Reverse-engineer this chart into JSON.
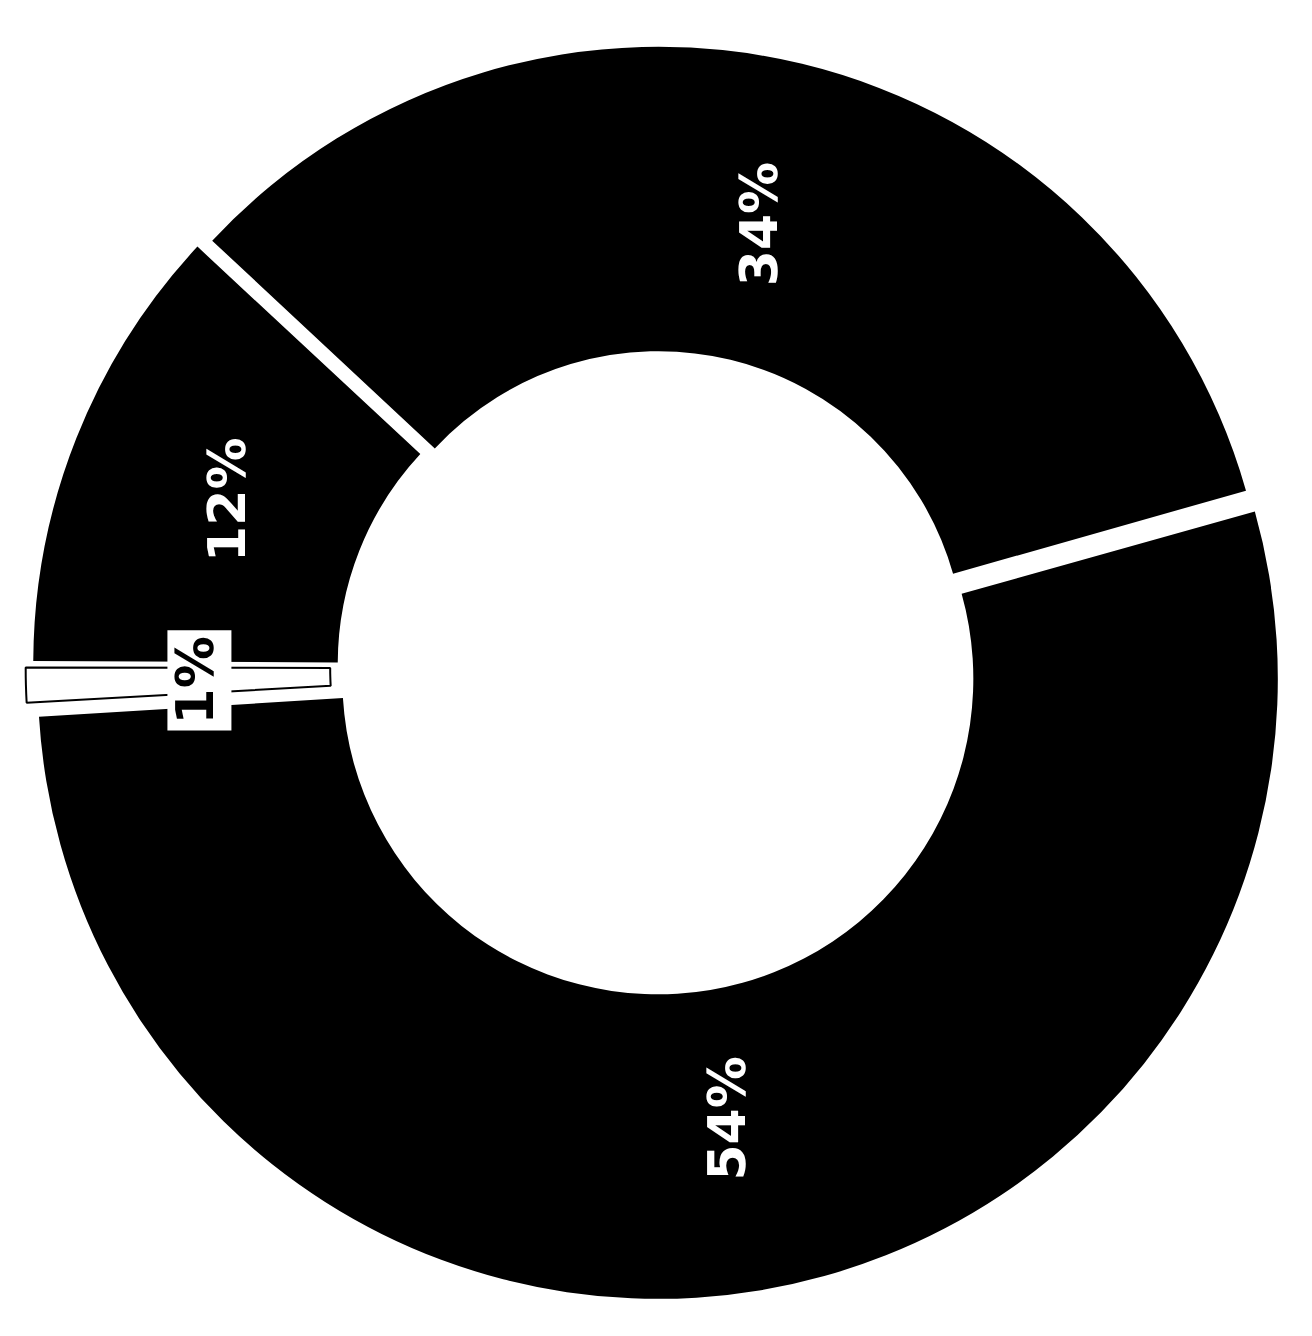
{
  "chart_data": {
    "type": "donut",
    "categories": [
      null,
      null,
      null,
      null
    ],
    "values": [
      34,
      54,
      1,
      12
    ],
    "colors": [
      "#000000",
      "#000000",
      "#ffffff",
      "#000000"
    ],
    "value_labels": [
      "34%",
      "54%",
      "1%",
      "12%"
    ]
  }
}
